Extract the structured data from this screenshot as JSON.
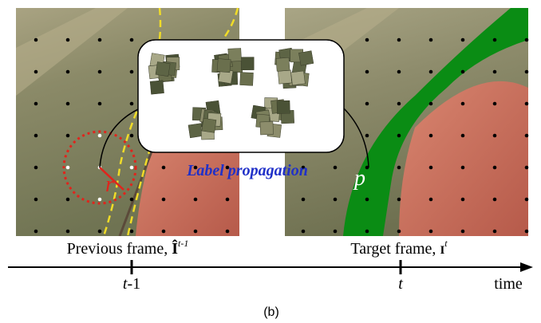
{
  "figure": {
    "propagation_label": "Label propagation",
    "radius_label": "r",
    "pixel_label": "p",
    "previous_frame": {
      "text": "Previous frame, ",
      "symbol": "Î",
      "superscript": "t-1"
    },
    "target_frame": {
      "text": "Target frame, ",
      "symbol": "I",
      "superscript": "t"
    },
    "timeline": {
      "ticks": [
        {
          "var": "t",
          "suffix": "-1"
        },
        {
          "var": "t",
          "suffix": ""
        }
      ],
      "axis_label": "time"
    },
    "caption": "(b)"
  }
}
